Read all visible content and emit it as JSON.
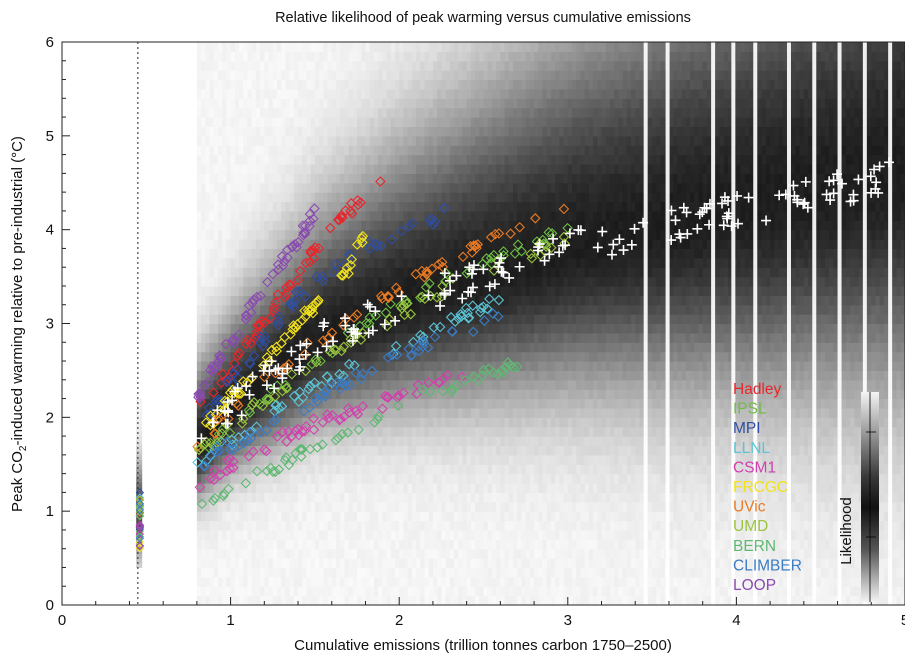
{
  "chart_data": {
    "type": "scatter",
    "title": "Relative likelihood of peak warming versus cumulative emissions",
    "xlabel": "Cumulative emissions (trillion tonnes carbon 1750–2500)",
    "ylabel_parts": [
      "Peak CO",
      "2",
      "-induced warming relative to pre-industrial (°C)"
    ],
    "xlim": [
      0,
      5
    ],
    "ylim": [
      0,
      6
    ],
    "x_ticks": [
      0,
      1,
      2,
      3,
      4,
      5
    ],
    "x_tick_labels": [
      "0",
      "1",
      "2",
      "3",
      "4",
      "5"
    ],
    "y_ticks": [
      0,
      1,
      2,
      3,
      4,
      5,
      6
    ],
    "y_tick_labels": [
      "0",
      "1",
      "2",
      "3",
      "4",
      "5",
      "6"
    ],
    "background": "grayscale likelihood density",
    "reference_line_x": 0.45,
    "colorbar_label": "Likelihood",
    "legend_position": "lower-right",
    "series": [
      {
        "name": "Hadley",
        "color": "#e8262b",
        "marker": "diamond",
        "curve": [
          [
            0.8,
            2.1
          ],
          [
            1.0,
            2.5
          ],
          [
            1.3,
            3.3
          ],
          [
            1.6,
            4.0
          ],
          [
            1.9,
            4.6
          ]
        ]
      },
      {
        "name": "IPSL",
        "color": "#6fbf44",
        "marker": "diamond",
        "curve": [
          [
            0.8,
            1.6
          ],
          [
            1.2,
            2.2
          ],
          [
            1.8,
            3.0
          ],
          [
            2.4,
            3.6
          ],
          [
            3.0,
            4.0
          ]
        ]
      },
      {
        "name": "MPI",
        "color": "#2f4ea3",
        "marker": "diamond",
        "curve": [
          [
            0.8,
            1.9
          ],
          [
            1.1,
            2.6
          ],
          [
            1.4,
            3.3
          ],
          [
            1.8,
            3.8
          ],
          [
            2.3,
            4.2
          ]
        ]
      },
      {
        "name": "LLNL",
        "color": "#5bc4d6",
        "marker": "diamond",
        "curve": [
          [
            0.8,
            1.5
          ],
          [
            1.2,
            2.0
          ],
          [
            1.7,
            2.5
          ],
          [
            2.2,
            2.9
          ],
          [
            2.6,
            3.3
          ]
        ]
      },
      {
        "name": "CSM1",
        "color": "#d23fae",
        "marker": "diamond",
        "curve": [
          [
            0.8,
            1.3
          ],
          [
            1.2,
            1.7
          ],
          [
            1.6,
            2.0
          ],
          [
            2.0,
            2.2
          ],
          [
            2.4,
            2.5
          ]
        ]
      },
      {
        "name": "FRCGC",
        "color": "#f2e21a",
        "marker": "diamond",
        "curve": [
          [
            0.8,
            1.8
          ],
          [
            1.1,
            2.4
          ],
          [
            1.4,
            3.0
          ],
          [
            1.7,
            3.6
          ],
          [
            1.8,
            4.0
          ]
        ]
      },
      {
        "name": "UVic",
        "color": "#ea7a23",
        "marker": "diamond",
        "curve": [
          [
            0.8,
            1.7
          ],
          [
            1.2,
            2.4
          ],
          [
            1.8,
            3.2
          ],
          [
            2.4,
            3.8
          ],
          [
            3.0,
            4.2
          ]
        ]
      },
      {
        "name": "UMD",
        "color": "#9ac43d",
        "marker": "diamond",
        "curve": [
          [
            0.8,
            1.6
          ],
          [
            1.2,
            2.2
          ],
          [
            1.8,
            2.9
          ],
          [
            2.4,
            3.5
          ],
          [
            3.0,
            3.9
          ]
        ]
      },
      {
        "name": "BERN",
        "color": "#5fb872",
        "marker": "diamond",
        "curve": [
          [
            0.8,
            1.1
          ],
          [
            1.2,
            1.4
          ],
          [
            1.6,
            1.8
          ],
          [
            2.1,
            2.2
          ],
          [
            2.7,
            2.6
          ]
        ]
      },
      {
        "name": "CLIMBER",
        "color": "#3a7cc6",
        "marker": "diamond",
        "curve": [
          [
            0.8,
            1.5
          ],
          [
            1.2,
            1.9
          ],
          [
            1.7,
            2.4
          ],
          [
            2.2,
            2.8
          ],
          [
            2.6,
            3.1
          ]
        ]
      },
      {
        "name": "LOOP",
        "color": "#8a4bb0",
        "marker": "diamond",
        "curve": [
          [
            0.8,
            2.2
          ],
          [
            1.0,
            2.8
          ],
          [
            1.2,
            3.4
          ],
          [
            1.4,
            3.9
          ],
          [
            1.5,
            4.2
          ]
        ]
      }
    ],
    "ensemble_crosses": {
      "color": "#ffffff",
      "curve": [
        [
          0.8,
          1.7
        ],
        [
          1.0,
          2.1
        ],
        [
          1.5,
          2.8
        ],
        [
          2.0,
          3.2
        ],
        [
          2.5,
          3.5
        ],
        [
          3.0,
          3.8
        ],
        [
          3.5,
          4.0
        ],
        [
          4.0,
          4.2
        ],
        [
          4.5,
          4.4
        ],
        [
          5.0,
          4.6
        ]
      ]
    }
  }
}
